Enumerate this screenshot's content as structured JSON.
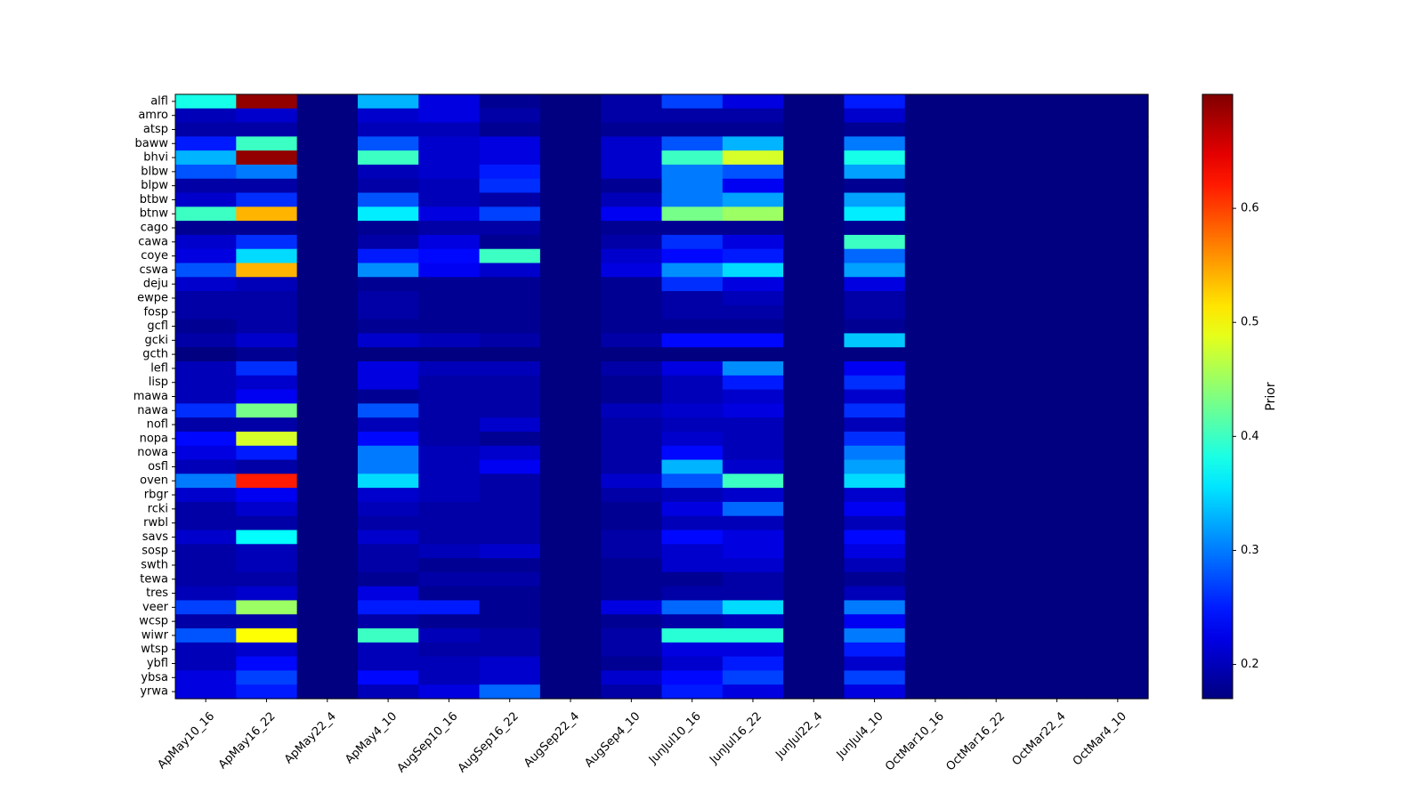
{
  "chart_data": {
    "type": "heatmap",
    "title": "",
    "xlabel": "",
    "ylabel": "",
    "colormap": "jet",
    "x_categories": [
      "ApMay10_16",
      "ApMay16_22",
      "ApMay22_4",
      "ApMay4_10",
      "AugSep10_16",
      "AugSep16_22",
      "AugSep22_4",
      "AugSep4_10",
      "JunJul10_16",
      "JunJul16_22",
      "JunJul22_4",
      "JunJul4_10",
      "OctMar10_16",
      "OctMar16_22",
      "OctMar22_4",
      "OctMar4_10"
    ],
    "y_categories": [
      "alfl",
      "amro",
      "atsp",
      "baww",
      "bhvi",
      "blbw",
      "blpw",
      "btbw",
      "btnw",
      "cago",
      "cawa",
      "coye",
      "cswa",
      "deju",
      "ewpe",
      "fosp",
      "gcfl",
      "gcki",
      "gcth",
      "lefl",
      "lisp",
      "mawa",
      "nawa",
      "nofl",
      "nopa",
      "nowa",
      "osfl",
      "oven",
      "rbgr",
      "rcki",
      "rwbl",
      "savs",
      "sosp",
      "swth",
      "tewa",
      "tres",
      "veer",
      "wcsp",
      "wiwr",
      "wtsp",
      "ybfl",
      "ybsa",
      "yrwa"
    ],
    "values": [
      [
        0.38,
        0.69,
        0.17,
        0.33,
        0.22,
        0.18,
        0.17,
        0.19,
        0.27,
        0.22,
        0.17,
        0.25,
        0.17,
        0.17,
        0.17,
        0.17
      ],
      [
        0.2,
        0.21,
        0.17,
        0.21,
        0.22,
        0.19,
        0.17,
        0.19,
        0.19,
        0.19,
        0.17,
        0.21,
        0.17,
        0.17,
        0.17,
        0.17
      ],
      [
        0.19,
        0.19,
        0.17,
        0.2,
        0.2,
        0.18,
        0.17,
        0.18,
        0.18,
        0.18,
        0.17,
        0.18,
        0.17,
        0.17,
        0.17,
        0.17
      ],
      [
        0.25,
        0.4,
        0.17,
        0.28,
        0.21,
        0.22,
        0.17,
        0.21,
        0.28,
        0.33,
        0.17,
        0.3,
        0.17,
        0.17,
        0.17,
        0.17
      ],
      [
        0.33,
        0.69,
        0.17,
        0.4,
        0.21,
        0.22,
        0.17,
        0.21,
        0.4,
        0.48,
        0.17,
        0.38,
        0.17,
        0.17,
        0.17,
        0.17
      ],
      [
        0.28,
        0.3,
        0.17,
        0.2,
        0.21,
        0.25,
        0.17,
        0.21,
        0.3,
        0.28,
        0.17,
        0.32,
        0.17,
        0.17,
        0.17,
        0.17
      ],
      [
        0.19,
        0.19,
        0.17,
        0.19,
        0.2,
        0.26,
        0.17,
        0.18,
        0.3,
        0.23,
        0.17,
        0.18,
        0.17,
        0.17,
        0.17,
        0.17
      ],
      [
        0.21,
        0.26,
        0.17,
        0.28,
        0.2,
        0.19,
        0.17,
        0.2,
        0.3,
        0.32,
        0.17,
        0.32,
        0.17,
        0.17,
        0.17,
        0.17
      ],
      [
        0.4,
        0.54,
        0.17,
        0.36,
        0.22,
        0.27,
        0.17,
        0.23,
        0.43,
        0.45,
        0.17,
        0.36,
        0.17,
        0.17,
        0.17,
        0.17
      ],
      [
        0.18,
        0.18,
        0.17,
        0.18,
        0.19,
        0.19,
        0.17,
        0.18,
        0.18,
        0.18,
        0.17,
        0.18,
        0.17,
        0.17,
        0.17,
        0.17
      ],
      [
        0.21,
        0.26,
        0.17,
        0.19,
        0.22,
        0.18,
        0.17,
        0.19,
        0.26,
        0.22,
        0.17,
        0.4,
        0.17,
        0.17,
        0.17,
        0.17
      ],
      [
        0.22,
        0.35,
        0.17,
        0.25,
        0.24,
        0.4,
        0.17,
        0.21,
        0.24,
        0.25,
        0.17,
        0.29,
        0.17,
        0.17,
        0.17,
        0.17
      ],
      [
        0.28,
        0.54,
        0.17,
        0.31,
        0.23,
        0.21,
        0.17,
        0.22,
        0.31,
        0.35,
        0.17,
        0.32,
        0.17,
        0.17,
        0.17,
        0.17
      ],
      [
        0.21,
        0.2,
        0.17,
        0.18,
        0.18,
        0.18,
        0.17,
        0.18,
        0.26,
        0.22,
        0.17,
        0.22,
        0.17,
        0.17,
        0.17,
        0.17
      ],
      [
        0.19,
        0.19,
        0.17,
        0.19,
        0.18,
        0.18,
        0.17,
        0.18,
        0.19,
        0.2,
        0.17,
        0.19,
        0.17,
        0.17,
        0.17,
        0.17
      ],
      [
        0.19,
        0.19,
        0.17,
        0.19,
        0.18,
        0.18,
        0.17,
        0.18,
        0.19,
        0.19,
        0.17,
        0.19,
        0.17,
        0.17,
        0.17,
        0.17
      ],
      [
        0.18,
        0.19,
        0.17,
        0.18,
        0.18,
        0.18,
        0.17,
        0.18,
        0.18,
        0.18,
        0.17,
        0.18,
        0.17,
        0.17,
        0.17,
        0.17
      ],
      [
        0.19,
        0.21,
        0.17,
        0.21,
        0.2,
        0.19,
        0.17,
        0.19,
        0.24,
        0.24,
        0.17,
        0.34,
        0.17,
        0.17,
        0.17,
        0.17
      ],
      [
        0.17,
        0.18,
        0.17,
        0.17,
        0.17,
        0.17,
        0.17,
        0.17,
        0.17,
        0.17,
        0.17,
        0.17,
        0.17,
        0.17,
        0.17,
        0.17
      ],
      [
        0.2,
        0.26,
        0.17,
        0.22,
        0.2,
        0.2,
        0.17,
        0.19,
        0.22,
        0.31,
        0.17,
        0.23,
        0.17,
        0.17,
        0.17,
        0.17
      ],
      [
        0.2,
        0.21,
        0.17,
        0.22,
        0.19,
        0.19,
        0.17,
        0.18,
        0.2,
        0.25,
        0.17,
        0.26,
        0.17,
        0.17,
        0.17,
        0.17
      ],
      [
        0.2,
        0.23,
        0.17,
        0.18,
        0.19,
        0.19,
        0.17,
        0.18,
        0.2,
        0.21,
        0.17,
        0.21,
        0.17,
        0.17,
        0.17,
        0.17
      ],
      [
        0.26,
        0.43,
        0.17,
        0.28,
        0.19,
        0.19,
        0.17,
        0.2,
        0.21,
        0.22,
        0.17,
        0.26,
        0.17,
        0.17,
        0.17,
        0.17
      ],
      [
        0.19,
        0.19,
        0.17,
        0.2,
        0.19,
        0.21,
        0.17,
        0.19,
        0.2,
        0.2,
        0.17,
        0.2,
        0.17,
        0.17,
        0.17,
        0.17
      ],
      [
        0.24,
        0.48,
        0.17,
        0.24,
        0.19,
        0.18,
        0.17,
        0.19,
        0.21,
        0.2,
        0.17,
        0.26,
        0.17,
        0.17,
        0.17,
        0.17
      ],
      [
        0.22,
        0.25,
        0.17,
        0.3,
        0.2,
        0.21,
        0.17,
        0.19,
        0.24,
        0.2,
        0.17,
        0.3,
        0.17,
        0.17,
        0.17,
        0.17
      ],
      [
        0.2,
        0.19,
        0.17,
        0.3,
        0.2,
        0.23,
        0.17,
        0.19,
        0.33,
        0.21,
        0.17,
        0.32,
        0.17,
        0.17,
        0.17,
        0.17
      ],
      [
        0.3,
        0.62,
        0.17,
        0.35,
        0.2,
        0.19,
        0.17,
        0.21,
        0.28,
        0.4,
        0.17,
        0.35,
        0.17,
        0.17,
        0.17,
        0.17
      ],
      [
        0.21,
        0.23,
        0.17,
        0.21,
        0.2,
        0.19,
        0.17,
        0.19,
        0.2,
        0.21,
        0.17,
        0.21,
        0.17,
        0.17,
        0.17,
        0.17
      ],
      [
        0.19,
        0.21,
        0.17,
        0.2,
        0.19,
        0.19,
        0.17,
        0.18,
        0.22,
        0.29,
        0.17,
        0.23,
        0.17,
        0.17,
        0.17,
        0.17
      ],
      [
        0.19,
        0.19,
        0.17,
        0.19,
        0.19,
        0.19,
        0.17,
        0.18,
        0.2,
        0.2,
        0.17,
        0.2,
        0.17,
        0.17,
        0.17,
        0.17
      ],
      [
        0.21,
        0.37,
        0.17,
        0.21,
        0.19,
        0.19,
        0.17,
        0.19,
        0.24,
        0.22,
        0.17,
        0.24,
        0.17,
        0.17,
        0.17,
        0.17
      ],
      [
        0.19,
        0.2,
        0.17,
        0.19,
        0.2,
        0.21,
        0.17,
        0.19,
        0.21,
        0.22,
        0.17,
        0.22,
        0.17,
        0.17,
        0.17,
        0.17
      ],
      [
        0.19,
        0.2,
        0.17,
        0.19,
        0.18,
        0.18,
        0.17,
        0.18,
        0.21,
        0.21,
        0.17,
        0.2,
        0.17,
        0.17,
        0.17,
        0.17
      ],
      [
        0.19,
        0.19,
        0.17,
        0.18,
        0.19,
        0.19,
        0.17,
        0.18,
        0.18,
        0.19,
        0.17,
        0.18,
        0.17,
        0.17,
        0.17,
        0.17
      ],
      [
        0.2,
        0.21,
        0.17,
        0.22,
        0.18,
        0.18,
        0.17,
        0.18,
        0.19,
        0.19,
        0.17,
        0.2,
        0.17,
        0.17,
        0.17,
        0.17
      ],
      [
        0.27,
        0.45,
        0.17,
        0.25,
        0.25,
        0.18,
        0.17,
        0.22,
        0.29,
        0.35,
        0.17,
        0.3,
        0.17,
        0.17,
        0.17,
        0.17
      ],
      [
        0.19,
        0.19,
        0.17,
        0.19,
        0.18,
        0.18,
        0.17,
        0.18,
        0.19,
        0.2,
        0.17,
        0.23,
        0.17,
        0.17,
        0.17,
        0.17
      ],
      [
        0.28,
        0.5,
        0.17,
        0.4,
        0.2,
        0.19,
        0.17,
        0.19,
        0.39,
        0.39,
        0.17,
        0.3,
        0.17,
        0.17,
        0.17,
        0.17
      ],
      [
        0.2,
        0.21,
        0.17,
        0.2,
        0.19,
        0.19,
        0.17,
        0.19,
        0.22,
        0.22,
        0.17,
        0.25,
        0.17,
        0.17,
        0.17,
        0.17
      ],
      [
        0.2,
        0.24,
        0.17,
        0.2,
        0.2,
        0.21,
        0.17,
        0.18,
        0.21,
        0.25,
        0.17,
        0.21,
        0.17,
        0.17,
        0.17,
        0.17
      ],
      [
        0.22,
        0.27,
        0.17,
        0.24,
        0.2,
        0.21,
        0.17,
        0.21,
        0.24,
        0.27,
        0.17,
        0.27,
        0.17,
        0.17,
        0.17,
        0.17
      ],
      [
        0.22,
        0.25,
        0.17,
        0.2,
        0.22,
        0.29,
        0.17,
        0.19,
        0.25,
        0.22,
        0.17,
        0.22,
        0.17,
        0.17,
        0.17,
        0.17
      ]
    ],
    "vmin": 0.17,
    "vmax": 0.7,
    "colorbar": {
      "label": "Prior",
      "ticks": [
        0.2,
        0.3,
        0.4,
        0.5,
        0.6
      ],
      "tick_labels": [
        "0.2",
        "0.3",
        "0.4",
        "0.5",
        "0.6"
      ]
    },
    "grid": false
  }
}
